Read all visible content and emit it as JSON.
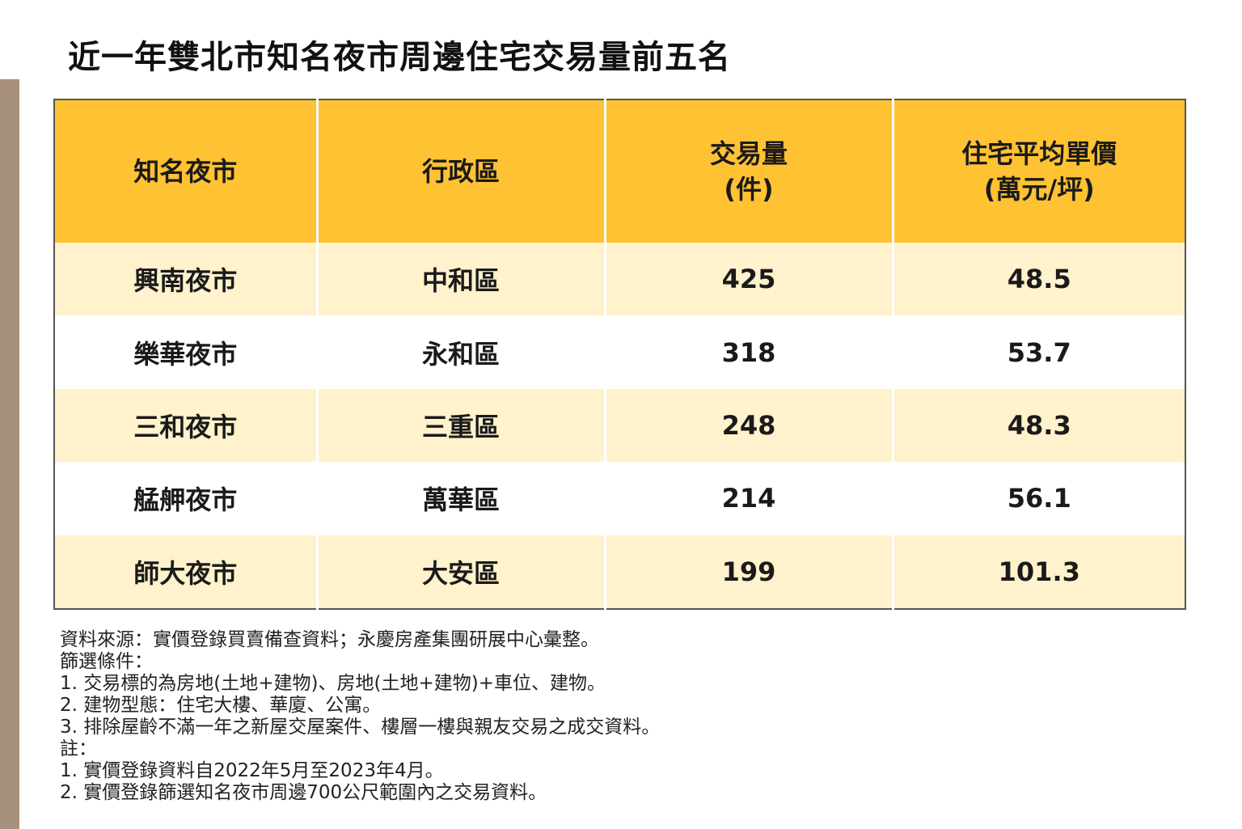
{
  "title": "近一年雙北市知名夜市周邊住宅交易量前五名",
  "table": {
    "headers": {
      "market": "知名夜市",
      "district": "行政區",
      "volume_line1": "交易量",
      "volume_line2": "(件)",
      "price_line1": "住宅平均單價",
      "price_line2": "(萬元/坪)"
    },
    "rows": [
      {
        "market": "興南夜市",
        "district": "中和區",
        "volume": "425",
        "price": "48.5"
      },
      {
        "market": "樂華夜市",
        "district": "永和區",
        "volume": "318",
        "price": "53.7"
      },
      {
        "market": "三和夜市",
        "district": "三重區",
        "volume": "248",
        "price": "48.3"
      },
      {
        "market": "艋舺夜市",
        "district": "萬華區",
        "volume": "214",
        "price": "56.1"
      },
      {
        "market": "師大夜市",
        "district": "大安區",
        "volume": "199",
        "price": "101.3"
      }
    ]
  },
  "notes": [
    "資料來源：實價登錄買賣備查資料；永慶房產集團研展中心彙整。",
    "篩選條件：",
    "1. 交易標的為房地(土地+建物)、房地(土地+建物)+車位、建物。",
    "2. 建物型態：住宅大樓、華廈、公寓。",
    "3. 排除屋齡不滿一年之新屋交屋案件、樓層一樓與親友交易之成交資料。",
    "註：",
    "1. 實價登錄資料自2022年5月至2023年4月。",
    "2. 實價登錄篩選知名夜市周邊700公尺範圍內之交易資料。"
  ],
  "colors": {
    "header_bg": "#ffc233",
    "row_alt_bg": "#fff2cc",
    "side_bar": "#a8917c"
  }
}
